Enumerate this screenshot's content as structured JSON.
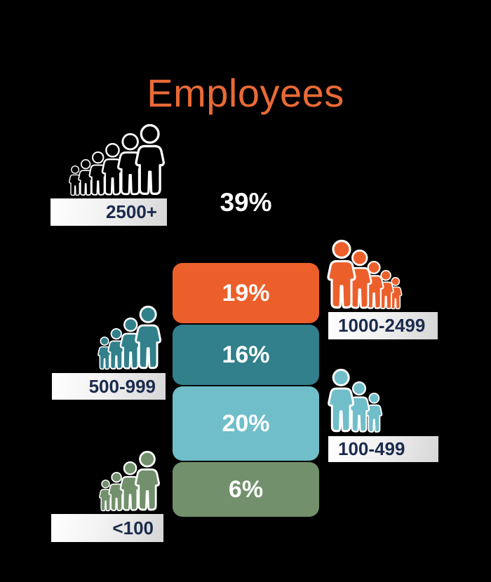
{
  "title": "Employees",
  "colors": {
    "title": "#E96A35",
    "background": "#000000",
    "label_text": "#1B2B4D",
    "orange": "#EC5F2B",
    "teal": "#31808B",
    "light_blue": "#6FBECA",
    "green": "#71906B",
    "white": "#FFFFFF"
  },
  "segments": [
    {
      "label": "2500+",
      "value": "39%",
      "color": "#FFFFFF"
    },
    {
      "label": "1000-2499",
      "value": "19%",
      "color": "#EC5F2B"
    },
    {
      "label": "500-999",
      "value": "16%",
      "color": "#31808B"
    },
    {
      "label": "100-499",
      "value": "20%",
      "color": "#6FBECA"
    },
    {
      "label": "<100",
      "value": "6%",
      "color": "#71906B"
    }
  ],
  "icon_groups": {
    "white": {
      "fill": "#000000",
      "stroke": "#FFFFFF",
      "heights": [
        44,
        53,
        64,
        76,
        90,
        103
      ],
      "front": "right",
      "advance": 0.62
    },
    "orange": {
      "fill": "#EC5F2B",
      "stroke": "#FFFFFF",
      "heights": [
        100,
        86,
        70,
        57,
        47
      ],
      "front": "left",
      "advance": 0.62
    },
    "teal": {
      "fill": "#31808B",
      "stroke": "#FFFFFF",
      "heights": [
        48,
        60,
        75,
        92
      ],
      "front": "right",
      "advance": 0.62
    },
    "light_blue": {
      "fill": "#6FBECA",
      "stroke": "#FFFFFF",
      "heights": [
        92,
        74,
        58
      ],
      "front": "left",
      "advance": 0.72
    },
    "green": {
      "fill": "#71906B",
      "stroke": "#FFFFFF",
      "heights": [
        46,
        57,
        72,
        87
      ],
      "front": "right",
      "advance": 0.62
    }
  },
  "chart_data": {
    "type": "bar",
    "title": "Employees",
    "categories": [
      "2500+",
      "1000-2499",
      "500-999",
      "100-499",
      "<100"
    ],
    "values": [
      39,
      19,
      16,
      20,
      6
    ],
    "unit": "percent",
    "colors": [
      "#FFFFFF",
      "#EC5F2B",
      "#31808B",
      "#6FBECA",
      "#71906B"
    ],
    "notes": "Pictogram infographic; each category shown as a group of person icons with a range label plaque; 2500+ shown as large 39% text, remaining categories as rounded colored blocks."
  }
}
